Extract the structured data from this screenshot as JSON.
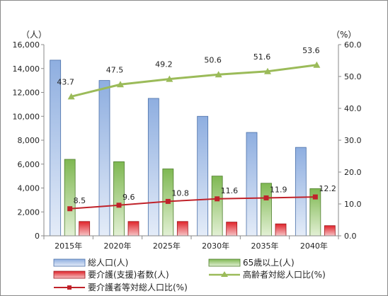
{
  "chart_data": {
    "type": "bar",
    "categories": [
      "2015年",
      "2020年",
      "2025年",
      "2030年",
      "2035年",
      "2040年"
    ],
    "left_unit": "（人）",
    "right_unit": "（%）",
    "ylim_left": [
      0,
      16000
    ],
    "ylim_right": [
      0,
      60
    ],
    "left_ticks": [
      "0",
      "2,000",
      "4,000",
      "6,000",
      "8,000",
      "10,000",
      "12,000",
      "14,000",
      "16,000"
    ],
    "right_ticks": [
      "0.0",
      "10.0",
      "20.0",
      "30.0",
      "40.0",
      "50.0",
      "60.0"
    ],
    "bar_series": [
      {
        "name": "総人口(人)",
        "values": [
          14700,
          13000,
          11500,
          10000,
          8650,
          7400
        ],
        "color": "#9bb7e2"
      },
      {
        "name": "65歳以上(人)",
        "values": [
          6400,
          6200,
          5600,
          5000,
          4400,
          3950
        ],
        "color": "#8fc168"
      },
      {
        "name": "要介護(支援)者数(人)",
        "values": [
          1200,
          1200,
          1200,
          1150,
          1000,
          850
        ],
        "color": "#e8333a"
      }
    ],
    "line_series": [
      {
        "name": "高齢者対総人口比(%)",
        "values": [
          43.7,
          47.5,
          49.2,
          50.6,
          51.6,
          53.6
        ],
        "labels": [
          "43.7",
          "47.5",
          "49.2",
          "50.6",
          "51.6",
          "53.6"
        ],
        "color": "#9bbb59",
        "axis": "right"
      },
      {
        "name": "要介護者等対総人口比(%)",
        "values": [
          8.5,
          9.6,
          10.8,
          11.6,
          11.9,
          12.2
        ],
        "labels": [
          "8.5",
          "9.6",
          "10.8",
          "11.6",
          "11.9",
          "12.2"
        ],
        "color": "#c0222a",
        "axis": "right"
      }
    ],
    "grid": false,
    "legend_position": "bottom"
  }
}
